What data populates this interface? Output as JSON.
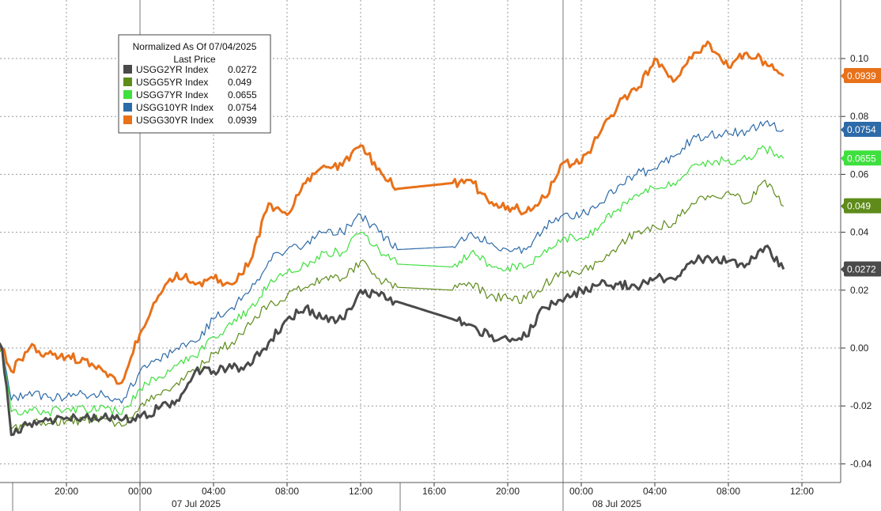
{
  "chart_data": {
    "type": "line",
    "legend": {
      "title": "Normalized As Of 07/04/2025",
      "subtitle": "Last Price",
      "placement": "top-left"
    },
    "x_ticks": [
      "20:00",
      "00:00",
      "04:00",
      "08:00",
      "12:00",
      "16:00",
      "20:00",
      "00:00",
      "04:00",
      "08:00",
      "12:00"
    ],
    "date_labels": [
      "07 Jul 2025",
      "08 Jul 2025"
    ],
    "y_ticks": [
      "0.10",
      "0.08",
      "0.06",
      "0.04",
      "0.02",
      "0.00",
      "-0.02",
      "-0.04"
    ],
    "ylim": [
      -0.045,
      0.12
    ],
    "grid": true,
    "series": [
      {
        "name": "USGG30YR Index",
        "last": "0.0939",
        "color": "#e8711a",
        "x": [
          "07-06 16:00",
          "07-06 16:30",
          "07-06 17:00",
          "07-06 18:00",
          "07-06 19:00",
          "07-06 20:00",
          "07-06 21:00",
          "07-06 22:00",
          "07-06 23:00",
          "07-07 00:00",
          "07-07 01:00",
          "07-07 02:00",
          "07-07 03:00",
          "07-07 04:00",
          "07-07 05:00",
          "07-07 06:00",
          "07-07 07:00",
          "07-07 08:00",
          "07-07 09:00",
          "07-07 10:00",
          "07-07 11:00",
          "07-07 12:00",
          "07-07 13:00",
          "07-07 14:00",
          "07-07 17:00",
          "07-07 18:00",
          "07-07 19:00",
          "07-07 20:00",
          "07-07 21:00",
          "07-07 22:00",
          "07-07 23:00",
          "07-08 00:00",
          "07-08 01:00",
          "07-08 02:00",
          "07-08 03:00",
          "07-08 04:00",
          "07-08 05:00",
          "07-08 06:00",
          "07-08 07:00",
          "07-08 08:00",
          "07-08 09:00",
          "07-08 10:00",
          "07-08 11:00"
        ],
        "y": [
          0.0,
          0.0,
          -0.008,
          0.0,
          -0.002,
          -0.003,
          -0.004,
          -0.008,
          -0.012,
          0.005,
          0.018,
          0.026,
          0.022,
          0.024,
          0.022,
          0.03,
          0.05,
          0.046,
          0.057,
          0.063,
          0.063,
          0.07,
          0.062,
          0.055,
          0.057,
          0.058,
          0.05,
          0.049,
          0.047,
          0.052,
          0.064,
          0.064,
          0.074,
          0.084,
          0.089,
          0.1,
          0.092,
          0.1,
          0.105,
          0.097,
          0.102,
          0.099,
          0.094
        ]
      },
      {
        "name": "USGG10YR Index",
        "last": "0.0754",
        "color": "#2d6aa8",
        "x": [
          "07-06 16:00",
          "07-06 16:30",
          "07-06 17:00",
          "07-06 18:00",
          "07-06 19:00",
          "07-06 20:00",
          "07-06 21:00",
          "07-06 22:00",
          "07-06 23:00",
          "07-07 00:00",
          "07-07 01:00",
          "07-07 02:00",
          "07-07 03:00",
          "07-07 04:00",
          "07-07 05:00",
          "07-07 06:00",
          "07-07 07:00",
          "07-07 08:00",
          "07-07 09:00",
          "07-07 10:00",
          "07-07 11:00",
          "07-07 12:00",
          "07-07 13:00",
          "07-07 14:00",
          "07-07 17:00",
          "07-07 18:00",
          "07-07 19:00",
          "07-07 20:00",
          "07-07 21:00",
          "07-07 22:00",
          "07-07 23:00",
          "07-08 00:00",
          "07-08 01:00",
          "07-08 02:00",
          "07-08 03:00",
          "07-08 04:00",
          "07-08 05:00",
          "07-08 06:00",
          "07-08 07:00",
          "07-08 08:00",
          "07-08 09:00",
          "07-08 10:00",
          "07-08 11:00"
        ],
        "y": [
          0.0,
          0.0,
          -0.018,
          -0.015,
          -0.017,
          -0.017,
          -0.016,
          -0.016,
          -0.019,
          -0.008,
          -0.004,
          0.0,
          0.002,
          0.01,
          0.014,
          0.02,
          0.03,
          0.034,
          0.036,
          0.04,
          0.04,
          0.046,
          0.04,
          0.034,
          0.035,
          0.04,
          0.036,
          0.034,
          0.034,
          0.042,
          0.046,
          0.046,
          0.05,
          0.056,
          0.06,
          0.062,
          0.066,
          0.072,
          0.074,
          0.074,
          0.075,
          0.078,
          0.0754
        ]
      },
      {
        "name": "USGG7YR Index",
        "last": "0.0655",
        "color": "#3ee03e",
        "x": [
          "07-06 16:00",
          "07-06 16:30",
          "07-06 17:00",
          "07-06 18:00",
          "07-06 19:00",
          "07-06 20:00",
          "07-06 21:00",
          "07-06 22:00",
          "07-06 23:00",
          "07-07 00:00",
          "07-07 01:00",
          "07-07 02:00",
          "07-07 03:00",
          "07-07 04:00",
          "07-07 05:00",
          "07-07 06:00",
          "07-07 07:00",
          "07-07 08:00",
          "07-07 09:00",
          "07-07 10:00",
          "07-07 11:00",
          "07-07 12:00",
          "07-07 13:00",
          "07-07 14:00",
          "07-07 17:00",
          "07-07 18:00",
          "07-07 19:00",
          "07-07 20:00",
          "07-07 21:00",
          "07-07 22:00",
          "07-07 23:00",
          "07-08 00:00",
          "07-08 01:00",
          "07-08 02:00",
          "07-08 03:00",
          "07-08 04:00",
          "07-08 05:00",
          "07-08 06:00",
          "07-08 07:00",
          "07-08 08:00",
          "07-08 09:00",
          "07-08 10:00",
          "07-08 11:00"
        ],
        "y": [
          0.0,
          0.0,
          -0.022,
          -0.021,
          -0.022,
          -0.021,
          -0.021,
          -0.02,
          -0.023,
          -0.014,
          -0.01,
          -0.006,
          -0.003,
          0.004,
          0.008,
          0.014,
          0.022,
          0.026,
          0.029,
          0.033,
          0.033,
          0.04,
          0.034,
          0.029,
          0.028,
          0.033,
          0.029,
          0.028,
          0.028,
          0.034,
          0.038,
          0.038,
          0.042,
          0.048,
          0.053,
          0.055,
          0.057,
          0.063,
          0.064,
          0.065,
          0.065,
          0.069,
          0.0655
        ]
      },
      {
        "name": "USGG5YR Index",
        "last": "0.049",
        "color": "#5e8b1a",
        "x": [
          "07-06 16:00",
          "07-06 16:30",
          "07-06 17:00",
          "07-06 18:00",
          "07-06 19:00",
          "07-06 20:00",
          "07-06 21:00",
          "07-06 22:00",
          "07-06 23:00",
          "07-07 00:00",
          "07-07 01:00",
          "07-07 02:00",
          "07-07 03:00",
          "07-07 04:00",
          "07-07 05:00",
          "07-07 06:00",
          "07-07 07:00",
          "07-07 08:00",
          "07-07 09:00",
          "07-07 10:00",
          "07-07 11:00",
          "07-07 12:00",
          "07-07 13:00",
          "07-07 14:00",
          "07-07 17:00",
          "07-07 18:00",
          "07-07 19:00",
          "07-07 20:00",
          "07-07 21:00",
          "07-07 22:00",
          "07-07 23:00",
          "07-08 00:00",
          "07-08 01:00",
          "07-08 02:00",
          "07-08 03:00",
          "07-08 04:00",
          "07-08 05:00",
          "07-08 06:00",
          "07-08 07:00",
          "07-08 08:00",
          "07-08 09:00",
          "07-08 10:00",
          "07-08 11:00"
        ],
        "y": [
          0.0,
          0.0,
          -0.028,
          -0.026,
          -0.026,
          -0.025,
          -0.025,
          -0.024,
          -0.027,
          -0.02,
          -0.016,
          -0.012,
          -0.008,
          -0.002,
          0.002,
          0.008,
          0.015,
          0.018,
          0.021,
          0.024,
          0.024,
          0.03,
          0.024,
          0.021,
          0.02,
          0.022,
          0.018,
          0.017,
          0.017,
          0.022,
          0.026,
          0.026,
          0.03,
          0.035,
          0.04,
          0.042,
          0.043,
          0.05,
          0.052,
          0.054,
          0.05,
          0.058,
          0.049
        ]
      },
      {
        "name": "USGG2YR Index",
        "last": "0.0272",
        "color": "#4a4a4a",
        "x": [
          "07-06 16:00",
          "07-06 16:30",
          "07-06 17:00",
          "07-06 18:00",
          "07-06 19:00",
          "07-06 20:00",
          "07-06 21:00",
          "07-06 22:00",
          "07-06 23:00",
          "07-07 00:00",
          "07-07 01:00",
          "07-07 02:00",
          "07-07 03:00",
          "07-07 04:00",
          "07-07 05:00",
          "07-07 06:00",
          "07-07 07:00",
          "07-07 08:00",
          "07-07 09:00",
          "07-07 10:00",
          "07-07 11:00",
          "07-07 12:00",
          "07-07 13:00",
          "07-07 14:00",
          "07-07 17:00",
          "07-07 18:00",
          "07-07 19:00",
          "07-07 20:00",
          "07-07 21:00",
          "07-07 22:00",
          "07-07 23:00",
          "07-08 00:00",
          "07-08 01:00",
          "07-08 02:00",
          "07-08 03:00",
          "07-08 04:00",
          "07-08 05:00",
          "07-08 06:00",
          "07-08 07:00",
          "07-08 08:00",
          "07-08 09:00",
          "07-08 10:00",
          "07-08 11:00"
        ],
        "y": [
          0.0,
          0.0,
          -0.03,
          -0.026,
          -0.025,
          -0.024,
          -0.024,
          -0.024,
          -0.025,
          -0.024,
          -0.021,
          -0.018,
          -0.008,
          -0.008,
          -0.007,
          -0.006,
          0.002,
          0.01,
          0.014,
          0.01,
          0.01,
          0.02,
          0.018,
          0.016,
          0.01,
          0.008,
          0.004,
          0.003,
          0.004,
          0.014,
          0.016,
          0.02,
          0.022,
          0.022,
          0.021,
          0.024,
          0.024,
          0.03,
          0.031,
          0.03,
          0.029,
          0.035,
          0.0272
        ]
      }
    ]
  }
}
